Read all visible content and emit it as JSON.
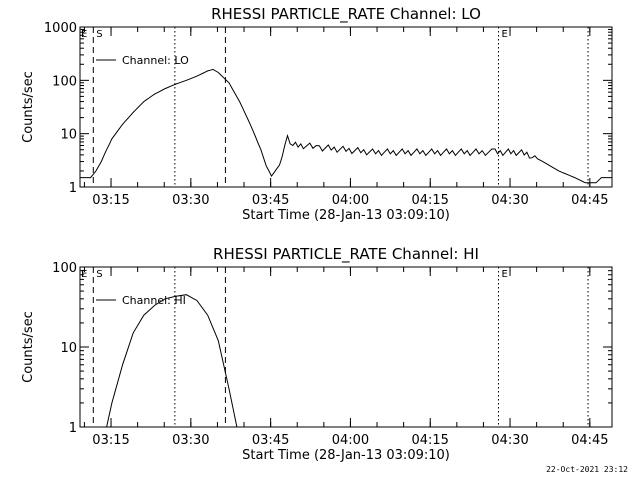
{
  "footer_date": "22-Oct-2021 23:12",
  "chart_data": [
    {
      "type": "line",
      "title": "RHESSI PARTICLE_RATE Channel: LO",
      "xlabel": "Start Time (28-Jan-13 03:09:10)",
      "ylabel": "Counts/sec",
      "yscale": "log",
      "ylim": [
        1,
        1000
      ],
      "xlim_minutes": [
        0,
        100
      ],
      "x_ticks": [
        "03:15",
        "03:30",
        "03:45",
        "04:00",
        "04:15",
        "04:30",
        "04:45"
      ],
      "y_ticks": [
        "1",
        "10",
        "100",
        "1000"
      ],
      "legend": {
        "label": "Channel: LO",
        "position": "top-left"
      },
      "markers": [
        {
          "label": "S",
          "time": "03:11:40",
          "style": "dashed"
        },
        {
          "label": "",
          "time": "03:36:30",
          "style": "dashed"
        },
        {
          "label": "",
          "time": "03:27:00",
          "style": "dotted"
        },
        {
          "label": "E",
          "time": "04:27:50",
          "style": "dotted"
        },
        {
          "label": "",
          "time": "04:44:40",
          "style": "dotted"
        }
      ],
      "series": [
        {
          "name": "Channel: LO",
          "x_minutes": [
            0,
            2,
            3,
            4,
            5,
            6,
            8,
            10,
            12,
            14,
            16,
            18,
            20,
            22,
            24,
            25,
            26,
            28,
            30,
            32,
            34,
            35,
            36,
            37,
            38,
            39,
            40,
            42,
            45,
            50,
            55,
            60,
            65,
            70,
            75,
            78,
            80,
            82,
            84,
            85,
            87,
            90,
            93,
            95,
            97,
            98,
            100
          ],
          "y": [
            1.5,
            1.5,
            2,
            3,
            5,
            8,
            15,
            25,
            40,
            55,
            70,
            85,
            100,
            120,
            150,
            160,
            140,
            90,
            40,
            15,
            5,
            2.5,
            1.6,
            2.2,
            4,
            8,
            6,
            6,
            5.5,
            5,
            4.5,
            4.5,
            4.5,
            4.5,
            4.5,
            4.5,
            4.5,
            4.5,
            4.2,
            3.8,
            3,
            2,
            1.5,
            1.2,
            1.2,
            1.5,
            1.5
          ]
        }
      ]
    },
    {
      "type": "line",
      "title": "RHESSI PARTICLE_RATE Channel: HI",
      "xlabel": "Start Time (28-Jan-13 03:09:10)",
      "ylabel": "Counts/sec",
      "yscale": "log",
      "ylim": [
        1,
        100
      ],
      "xlim_minutes": [
        0,
        100
      ],
      "x_ticks": [
        "03:15",
        "03:30",
        "03:45",
        "04:00",
        "04:15",
        "04:30",
        "04:45"
      ],
      "y_ticks": [
        "1",
        "10",
        "100"
      ],
      "legend": {
        "label": "Channel: HI",
        "position": "top-left"
      },
      "markers": [
        {
          "label": "S",
          "time": "03:11:40",
          "style": "dashed"
        },
        {
          "label": "",
          "time": "03:36:30",
          "style": "dashed"
        },
        {
          "label": "",
          "time": "03:27:00",
          "style": "dotted"
        },
        {
          "label": "E",
          "time": "04:27:50",
          "style": "dotted"
        },
        {
          "label": "",
          "time": "04:44:40",
          "style": "dotted"
        }
      ],
      "series": [
        {
          "name": "Channel: HI",
          "x_minutes": [
            5,
            6,
            8,
            10,
            12,
            14,
            16,
            18,
            20,
            22,
            24,
            26,
            28,
            29.5
          ],
          "y": [
            1,
            2,
            6,
            15,
            25,
            33,
            40,
            43,
            45,
            38,
            25,
            12,
            3,
            1
          ]
        }
      ]
    }
  ]
}
